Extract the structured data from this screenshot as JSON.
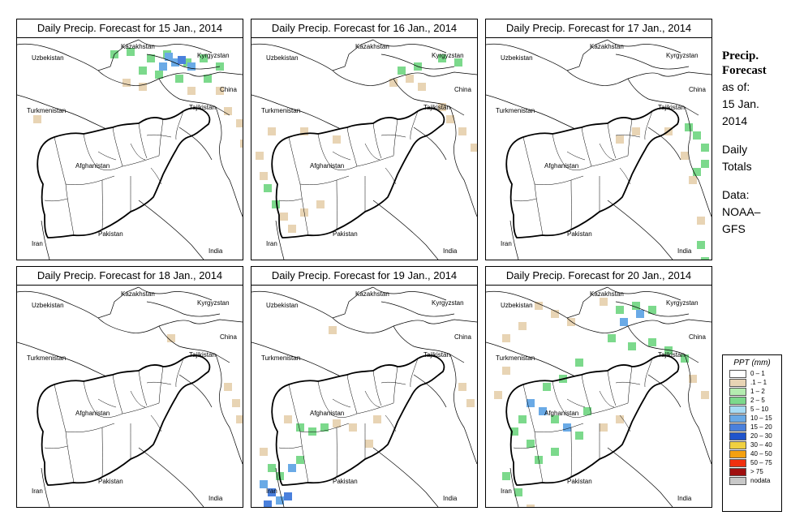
{
  "panels": [
    {
      "title": "Daily Precip. Forecast for  15 Jan., 2014",
      "cells": [
        [
          115,
          15,
          "#7cd98c"
        ],
        [
          135,
          12,
          "#7cd98c"
        ],
        [
          160,
          20,
          "#7cd98c"
        ],
        [
          180,
          15,
          "#7cd98c"
        ],
        [
          205,
          25,
          "#7cd98c"
        ],
        [
          225,
          20,
          "#7cd98c"
        ],
        [
          245,
          30,
          "#7cd98c"
        ],
        [
          150,
          35,
          "#7cd98c"
        ],
        [
          170,
          40,
          "#7cd98c"
        ],
        [
          195,
          45,
          "#7cd98c"
        ],
        [
          230,
          45,
          "#7cd98c"
        ],
        [
          130,
          50,
          "#e8d4b4"
        ],
        [
          150,
          55,
          "#e8d4b4"
        ],
        [
          210,
          60,
          "#e8d4b4"
        ],
        [
          245,
          60,
          "#e8d4b4"
        ],
        [
          255,
          85,
          "#e8d4b4"
        ],
        [
          270,
          100,
          "#e8d4b4"
        ],
        [
          275,
          125,
          "#e8d4b4"
        ],
        [
          20,
          95,
          "#e8d4b4"
        ],
        [
          182,
          18,
          "#6aaae6"
        ],
        [
          190,
          25,
          "#6aaae6"
        ],
        [
          198,
          22,
          "#4a80dc"
        ],
        [
          210,
          30,
          "#6aaae6"
        ],
        [
          175,
          30,
          "#6aaae6"
        ]
      ]
    },
    {
      "title": "Daily Precip. Forecast for  16 Jan., 2014",
      "cells": [
        [
          180,
          35,
          "#7cd98c"
        ],
        [
          200,
          30,
          "#7cd98c"
        ],
        [
          230,
          20,
          "#7cd98c"
        ],
        [
          250,
          25,
          "#7cd98c"
        ],
        [
          170,
          50,
          "#e8d4b4"
        ],
        [
          190,
          45,
          "#e8d4b4"
        ],
        [
          205,
          55,
          "#e8d4b4"
        ],
        [
          230,
          80,
          "#e8d4b4"
        ],
        [
          240,
          95,
          "#e8d4b4"
        ],
        [
          255,
          110,
          "#e8d4b4"
        ],
        [
          270,
          130,
          "#e8d4b4"
        ],
        [
          5,
          140,
          "#e8d4b4"
        ],
        [
          10,
          165,
          "#e8d4b4"
        ],
        [
          15,
          180,
          "#7cd98c"
        ],
        [
          25,
          200,
          "#7cd98c"
        ],
        [
          35,
          215,
          "#e8d4b4"
        ],
        [
          45,
          230,
          "#e8d4b4"
        ],
        [
          60,
          210,
          "#e8d4b4"
        ],
        [
          80,
          200,
          "#e8d4b4"
        ],
        [
          20,
          110,
          "#e8d4b4"
        ],
        [
          60,
          110,
          "#e8d4b4"
        ],
        [
          100,
          120,
          "#e8d4b4"
        ]
      ]
    },
    {
      "title": "Daily Precip. Forecast for  17 Jan., 2014",
      "cells": [
        [
          245,
          105,
          "#7cd98c"
        ],
        [
          255,
          115,
          "#7cd98c"
        ],
        [
          265,
          130,
          "#7cd98c"
        ],
        [
          265,
          150,
          "#7cd98c"
        ],
        [
          255,
          160,
          "#7cd98c"
        ],
        [
          260,
          250,
          "#7cd98c"
        ],
        [
          265,
          270,
          "#7cd98c"
        ],
        [
          220,
          110,
          "#e8d4b4"
        ],
        [
          240,
          140,
          "#e8d4b4"
        ],
        [
          250,
          170,
          "#e8d4b4"
        ],
        [
          180,
          110,
          "#e8d4b4"
        ],
        [
          160,
          120,
          "#e8d4b4"
        ],
        [
          260,
          220,
          "#e8d4b4"
        ]
      ]
    },
    {
      "title": "Daily Precip. Forecast for  18 Jan., 2014",
      "cells": [
        [
          255,
          120,
          "#e8d4b4"
        ],
        [
          265,
          140,
          "#e8d4b4"
        ],
        [
          270,
          160,
          "#e8d4b4"
        ],
        [
          185,
          60,
          "#e8d4b4"
        ]
      ]
    },
    {
      "title": "Daily Precip. Forecast for  19 Jan., 2014",
      "cells": [
        [
          40,
          160,
          "#e8d4b4"
        ],
        [
          55,
          170,
          "#7cd98c"
        ],
        [
          70,
          175,
          "#7cd98c"
        ],
        [
          85,
          170,
          "#7cd98c"
        ],
        [
          100,
          165,
          "#e8d4b4"
        ],
        [
          10,
          200,
          "#e8d4b4"
        ],
        [
          20,
          220,
          "#7cd98c"
        ],
        [
          30,
          230,
          "#7cd98c"
        ],
        [
          45,
          220,
          "#6aaae6"
        ],
        [
          55,
          210,
          "#7cd98c"
        ],
        [
          10,
          240,
          "#6aaae6"
        ],
        [
          20,
          250,
          "#4a80dc"
        ],
        [
          30,
          260,
          "#6aaae6"
        ],
        [
          15,
          265,
          "#4a80dc"
        ],
        [
          40,
          255,
          "#4a80dc"
        ],
        [
          10,
          280,
          "#4a80dc"
        ],
        [
          35,
          280,
          "#6aaae6"
        ],
        [
          120,
          170,
          "#e8d4b4"
        ],
        [
          150,
          160,
          "#e8d4b4"
        ],
        [
          140,
          190,
          "#e8d4b4"
        ],
        [
          255,
          120,
          "#e8d4b4"
        ],
        [
          265,
          140,
          "#e8d4b4"
        ],
        [
          95,
          50,
          "#e8d4b4"
        ]
      ]
    },
    {
      "title": "Daily Precip. Forecast for  20 Jan., 2014",
      "cells": [
        [
          60,
          20,
          "#e8d4b4"
        ],
        [
          80,
          30,
          "#e8d4b4"
        ],
        [
          100,
          40,
          "#e8d4b4"
        ],
        [
          40,
          45,
          "#e8d4b4"
        ],
        [
          20,
          60,
          "#e8d4b4"
        ],
        [
          140,
          15,
          "#e8d4b4"
        ],
        [
          160,
          25,
          "#7cd98c"
        ],
        [
          180,
          20,
          "#7cd98c"
        ],
        [
          200,
          25,
          "#7cd98c"
        ],
        [
          165,
          40,
          "#6aaae6"
        ],
        [
          185,
          30,
          "#6aaae6"
        ],
        [
          150,
          60,
          "#7cd98c"
        ],
        [
          175,
          70,
          "#7cd98c"
        ],
        [
          200,
          65,
          "#7cd98c"
        ],
        [
          220,
          75,
          "#7cd98c"
        ],
        [
          240,
          85,
          "#7cd98c"
        ],
        [
          110,
          90,
          "#7cd98c"
        ],
        [
          90,
          110,
          "#7cd98c"
        ],
        [
          70,
          120,
          "#7cd98c"
        ],
        [
          50,
          140,
          "#6aaae6"
        ],
        [
          65,
          150,
          "#6aaae6"
        ],
        [
          80,
          160,
          "#7cd98c"
        ],
        [
          95,
          170,
          "#6aaae6"
        ],
        [
          110,
          180,
          "#7cd98c"
        ],
        [
          40,
          160,
          "#7cd98c"
        ],
        [
          30,
          175,
          "#7cd98c"
        ],
        [
          50,
          190,
          "#7cd98c"
        ],
        [
          60,
          210,
          "#7cd98c"
        ],
        [
          80,
          200,
          "#7cd98c"
        ],
        [
          120,
          150,
          "#7cd98c"
        ],
        [
          140,
          170,
          "#e8d4b4"
        ],
        [
          160,
          160,
          "#e8d4b4"
        ],
        [
          20,
          230,
          "#7cd98c"
        ],
        [
          35,
          250,
          "#7cd98c"
        ],
        [
          50,
          270,
          "#e8d4b4"
        ],
        [
          10,
          130,
          "#e8d4b4"
        ],
        [
          20,
          100,
          "#e8d4b4"
        ],
        [
          250,
          110,
          "#e8d4b4"
        ],
        [
          265,
          130,
          "#e8d4b4"
        ]
      ]
    }
  ],
  "labels": {
    "kazakhstan": "Kazakhstan",
    "uzbekistan": "Uzbekistan",
    "kyrgyzstan": "Kyrgyzstan",
    "china": "China",
    "turkmenistan": "Turkmenistan",
    "tajikistan": "Tajikistan",
    "afghanistan": "Afghanistan",
    "pakistan": "Pakistan",
    "iran": "Iran",
    "india": "India"
  },
  "sidebar": {
    "title_line1": "Precip.",
    "title_line2": "Forecast",
    "asof_line1": "as of:",
    "asof_line2": "15 Jan.",
    "asof_line3": "2014",
    "totals_line1": "Daily",
    "totals_line2": "Totals",
    "source_line1": "Data:",
    "source_line2": "NOAA–",
    "source_line3": "GFS"
  },
  "legend": {
    "title": "PPT (mm)",
    "items": [
      {
        "label": "0 – 1",
        "color": "#ffffff"
      },
      {
        "label": ".1 – 1",
        "color": "#e8d4b4"
      },
      {
        "label": "1 – 2",
        "color": "#b4ecb0"
      },
      {
        "label": "2 – 5",
        "color": "#7cd98c"
      },
      {
        "label": "5 – 10",
        "color": "#a8dcf4"
      },
      {
        "label": "10 – 15",
        "color": "#6aaae6"
      },
      {
        "label": "15 – 20",
        "color": "#4a80dc"
      },
      {
        "label": "20 – 30",
        "color": "#2054cc"
      },
      {
        "label": "30 – 40",
        "color": "#f0d040"
      },
      {
        "label": "40 – 50",
        "color": "#f4a010"
      },
      {
        "label": "50 – 75",
        "color": "#f03010"
      },
      {
        "label": "> 75",
        "color": "#a01010"
      },
      {
        "label": "nodata",
        "color": "#c8c8c8"
      }
    ]
  }
}
